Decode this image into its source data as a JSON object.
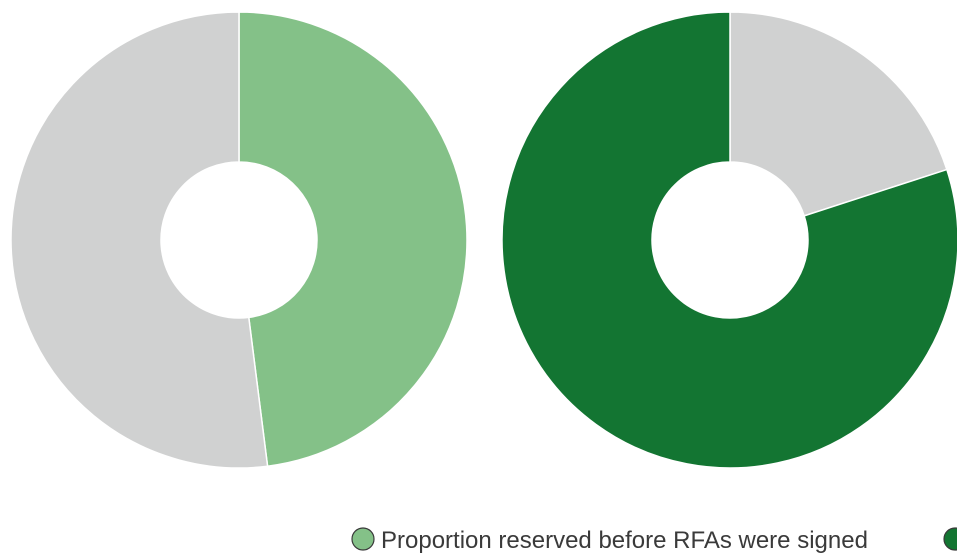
{
  "chart_data": [
    {
      "type": "pie",
      "donut": true,
      "slices": [
        {
          "label": "Proportion reserved before RFAs were signed",
          "value": 48,
          "color": "#84c188"
        },
        {
          "label": "",
          "value": 52,
          "color": "#d0d1d1"
        }
      ]
    },
    {
      "type": "pie",
      "donut": true,
      "slices": [
        {
          "label": "",
          "value": 20,
          "color": "#d0d1d1"
        },
        {
          "label": "",
          "value": 80,
          "color": "#137532"
        }
      ]
    }
  ],
  "legend": [
    {
      "label": "Proportion reserved before RFAs were signed",
      "color": "#84c188"
    },
    {
      "label": "",
      "color": "#137532"
    }
  ]
}
